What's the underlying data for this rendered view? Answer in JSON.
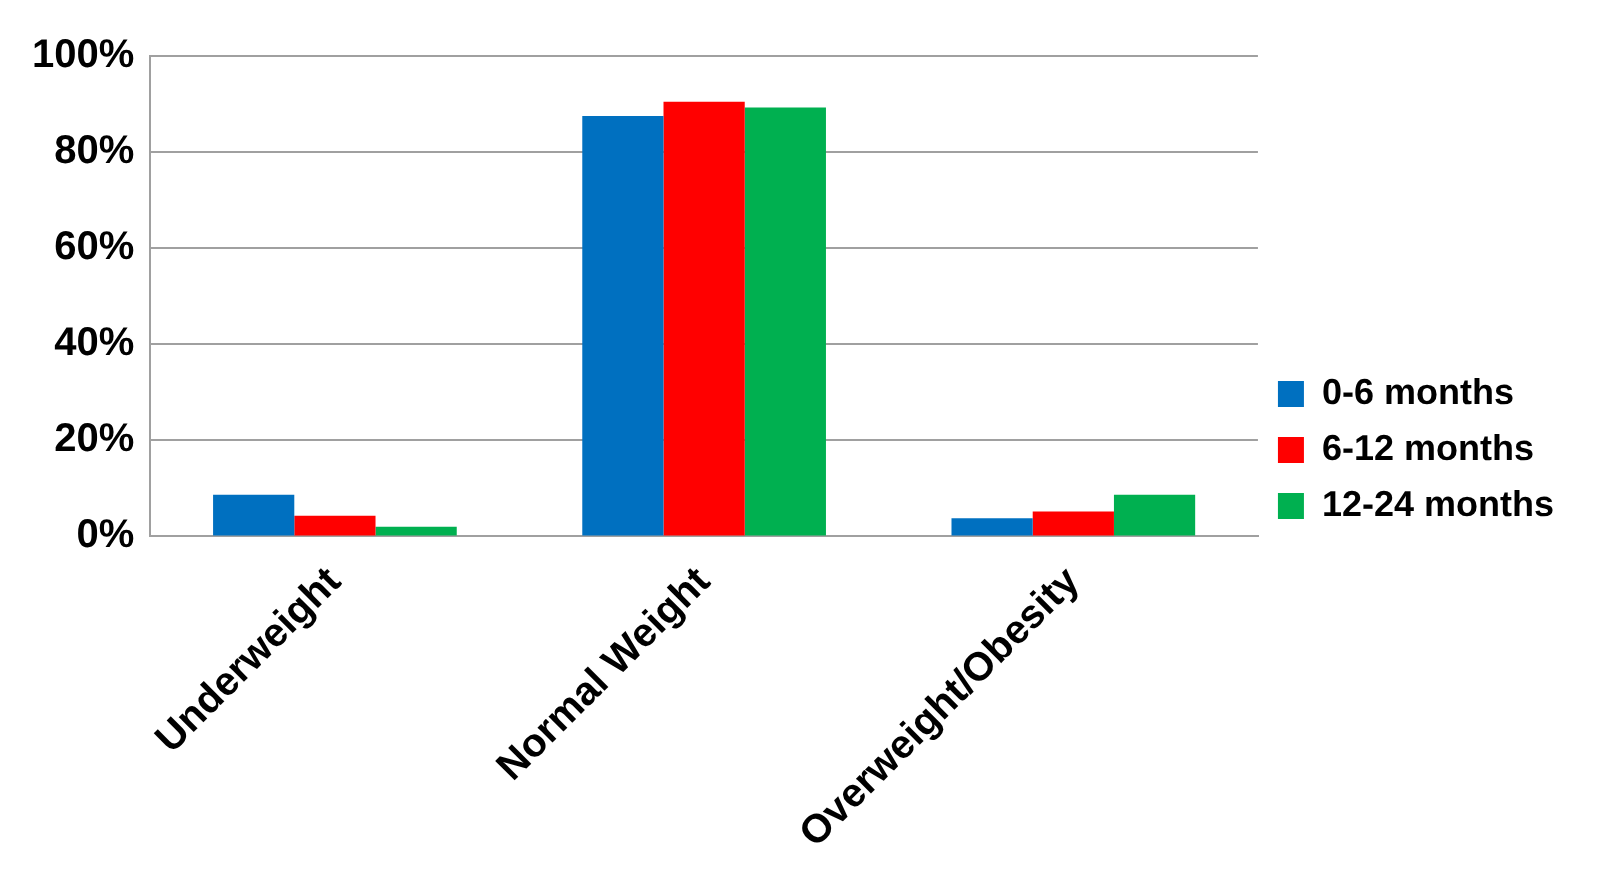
{
  "chart_data": {
    "type": "bar",
    "categories": [
      "Underweight",
      "Normal Weight",
      "Overweight/Obesity"
    ],
    "series": [
      {
        "name": "0-6 months",
        "color": "#0070c0",
        "values": [
          8.7,
          87.5,
          3.8
        ]
      },
      {
        "name": "6-12 months",
        "color": "#ff0000",
        "values": [
          4.3,
          90.5,
          5.2
        ]
      },
      {
        "name": "12-24 months",
        "color": "#00b050",
        "values": [
          2.0,
          89.3,
          8.7
        ]
      }
    ],
    "ylim": [
      0,
      100
    ],
    "yticks": [
      {
        "value": 0,
        "label": "0%"
      },
      {
        "value": 20,
        "label": "20%"
      },
      {
        "value": 40,
        "label": "40%"
      },
      {
        "value": 60,
        "label": "60%"
      },
      {
        "value": 80,
        "label": "80%"
      },
      {
        "value": 100,
        "label": "100%"
      }
    ],
    "grid": "y",
    "legend": "right"
  }
}
